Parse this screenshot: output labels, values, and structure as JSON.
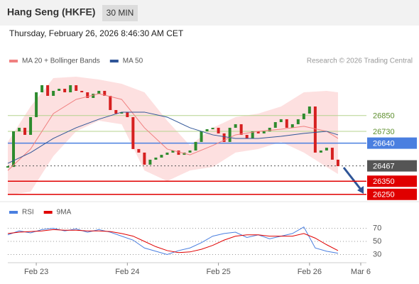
{
  "header": {
    "title": "Hang Seng (HKFE)",
    "interval": "30 MIN",
    "datetime": "Thursday, February 26, 2026 8:46:30 AM CET"
  },
  "chart_data": [
    {
      "type": "candlestick",
      "copyright": "Research © 2026 Trading Central",
      "xlim": [
        0,
        63
      ],
      "ylim": [
        26200,
        27200
      ],
      "up_color": "#2e8b2e",
      "down_color": "#d62020",
      "closes": [
        26459,
        26730,
        26757,
        26703,
        26838,
        27027,
        27081,
        27000,
        27038,
        27054,
        27027,
        27081,
        27038,
        27027,
        26984,
        27016,
        27038,
        27000,
        26892,
        26865,
        26876,
        26838,
        26595,
        26568,
        26476,
        26514,
        26530,
        26551,
        26568,
        26584,
        26551,
        26568,
        26584,
        26649,
        26730,
        26746,
        26757,
        26714,
        26649,
        26757,
        26784,
        26703,
        26676,
        26730,
        26714,
        26730,
        26757,
        26800,
        26822,
        26757,
        26784,
        26822,
        26865,
        26919,
        26568,
        26584,
        26605,
        26514,
        26465
      ],
      "series": [
        {
          "name": "MA 20 + Bollinger Bands",
          "color": "#f08080",
          "band_color": "#fde0e0",
          "x": [
            0,
            4,
            8,
            12,
            16,
            20,
            24,
            28,
            32,
            36,
            40,
            44,
            48,
            52,
            56,
            58
          ],
          "values": [
            26432,
            26595,
            26865,
            26973,
            27016,
            26973,
            26757,
            26595,
            26551,
            26622,
            26703,
            26730,
            26746,
            26768,
            26730,
            26676
          ],
          "upper": [
            26649,
            26919,
            27135,
            27146,
            27124,
            27092,
            27027,
            26811,
            26622,
            26757,
            26838,
            26865,
            26919,
            27027,
            27038,
            27027
          ],
          "lower": [
            26243,
            26270,
            26541,
            26730,
            26811,
            26784,
            26432,
            26351,
            26432,
            26459,
            26568,
            26595,
            26649,
            26568,
            26459,
            26405
          ]
        },
        {
          "name": "MA 50",
          "color": "#2f5597",
          "x": [
            0,
            4,
            8,
            12,
            16,
            20,
            24,
            28,
            32,
            36,
            40,
            44,
            48,
            52,
            56,
            58
          ],
          "values": [
            26486,
            26568,
            26676,
            26757,
            26822,
            26876,
            26876,
            26838,
            26757,
            26703,
            26676,
            26676,
            26692,
            26714,
            26730,
            26703
          ]
        }
      ],
      "levels": [
        {
          "value": 26850,
          "color": "#b5d38e",
          "text_color": "#5e8f2e",
          "style": "text"
        },
        {
          "value": 26730,
          "color": "#b5d38e",
          "text_color": "#5e8f2e",
          "style": "text"
        },
        {
          "value": 26640,
          "color": "#4a7fe0",
          "text_color": "#ffffff",
          "style": "box"
        },
        {
          "value": 26467,
          "color": "#555555",
          "text_color": "#ffffff",
          "style": "box",
          "dotted": true
        },
        {
          "value": 26350,
          "color": "#e00000",
          "text_color": "#ffffff",
          "style": "box"
        },
        {
          "value": 26250,
          "color": "#e00000",
          "text_color": "#ffffff",
          "style": "box"
        }
      ]
    },
    {
      "type": "line",
      "xlim": [
        0,
        63
      ],
      "ylim": [
        20,
        80
      ],
      "yticks": [
        30,
        50,
        70
      ],
      "grid": true,
      "xticks": [
        {
          "value": 5,
          "label": "Feb 23"
        },
        {
          "value": 21,
          "label": "Feb 24"
        },
        {
          "value": 37,
          "label": "Feb 25"
        },
        {
          "value": 53,
          "label": "Feb 26"
        },
        {
          "value": 62,
          "label": "Mar 6"
        }
      ],
      "series": [
        {
          "name": "RSI",
          "color": "#4a7fe0",
          "x": [
            0,
            2,
            4,
            6,
            8,
            10,
            12,
            14,
            16,
            18,
            20,
            22,
            24,
            26,
            28,
            30,
            32,
            34,
            36,
            38,
            40,
            42,
            44,
            46,
            48,
            50,
            52,
            54,
            56,
            58
          ],
          "values": [
            60,
            66,
            63,
            68,
            70,
            66,
            69,
            64,
            68,
            64,
            58,
            52,
            40,
            35,
            30,
            36,
            40,
            48,
            58,
            62,
            64,
            56,
            60,
            54,
            58,
            62,
            72,
            40,
            35,
            32
          ]
        },
        {
          "name": "9MA",
          "color": "#e00000",
          "x": [
            0,
            2,
            4,
            6,
            8,
            10,
            12,
            14,
            16,
            18,
            20,
            22,
            24,
            26,
            28,
            30,
            32,
            34,
            36,
            38,
            40,
            42,
            44,
            46,
            48,
            50,
            52,
            54,
            56,
            58
          ],
          "values": [
            62,
            64,
            65,
            66,
            68,
            67,
            67,
            66,
            66,
            65,
            62,
            58,
            50,
            42,
            36,
            33,
            34,
            38,
            44,
            52,
            58,
            60,
            60,
            58,
            58,
            58,
            62,
            55,
            45,
            36
          ]
        }
      ]
    }
  ]
}
